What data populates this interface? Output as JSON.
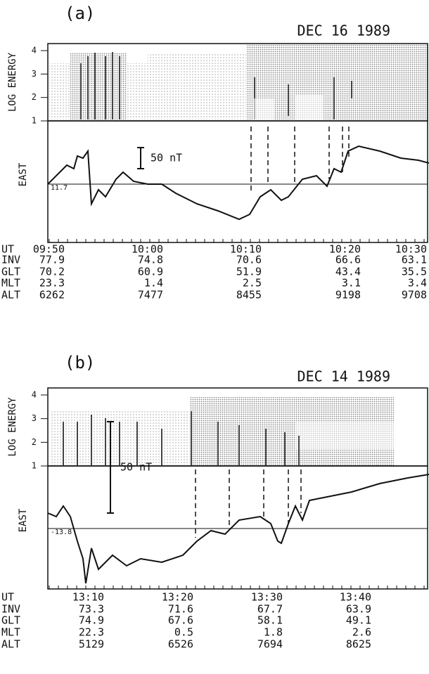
{
  "panels": [
    {
      "label": "(a)",
      "date": "DEC 16 1989",
      "y_axis_label": "LOG ENERGY",
      "energy_ticks": [
        "4",
        "3",
        "2",
        "1"
      ],
      "mag_label": "EAST",
      "scale_label": "50 nT",
      "baseline_label": "11.7",
      "rows": [
        {
          "name": "UT",
          "cells": [
            "09:50",
            "10:00",
            "10:10",
            "10:20",
            "10:30"
          ]
        },
        {
          "name": "INV",
          "cells": [
            "77.9",
            "74.8",
            "70.6",
            "66.6",
            "63.1"
          ]
        },
        {
          "name": "GLT",
          "cells": [
            "70.2",
            "60.9",
            "51.9",
            "43.4",
            "35.5"
          ]
        },
        {
          "name": "MLT",
          "cells": [
            "23.3",
            "1.4",
            "2.5",
            "3.1",
            "3.4"
          ]
        },
        {
          "name": "ALT",
          "cells": [
            "6262",
            "7477",
            "8455",
            "9198",
            "9708"
          ]
        }
      ]
    },
    {
      "label": "(b)",
      "date": "DEC 14 1989",
      "y_axis_label": "LOG ENERGY",
      "energy_ticks": [
        "4",
        "3",
        "2",
        "1"
      ],
      "mag_label": "EAST",
      "scale_label": "50 nT",
      "baseline_label": "-13.8",
      "rows": [
        {
          "name": "UT",
          "cells": [
            "13:10",
            "13:20",
            "13:30",
            "13:40"
          ]
        },
        {
          "name": "INV",
          "cells": [
            "73.3",
            "71.6",
            "67.7",
            "63.9"
          ]
        },
        {
          "name": "GLT",
          "cells": [
            "74.9",
            "67.6",
            "58.1",
            "49.1"
          ]
        },
        {
          "name": "MLT",
          "cells": [
            "22.3",
            "0.5",
            "1.8",
            "2.6"
          ]
        },
        {
          "name": "ALT",
          "cells": [
            "5129",
            "6526",
            "7694",
            "8625"
          ]
        }
      ]
    }
  ]
}
